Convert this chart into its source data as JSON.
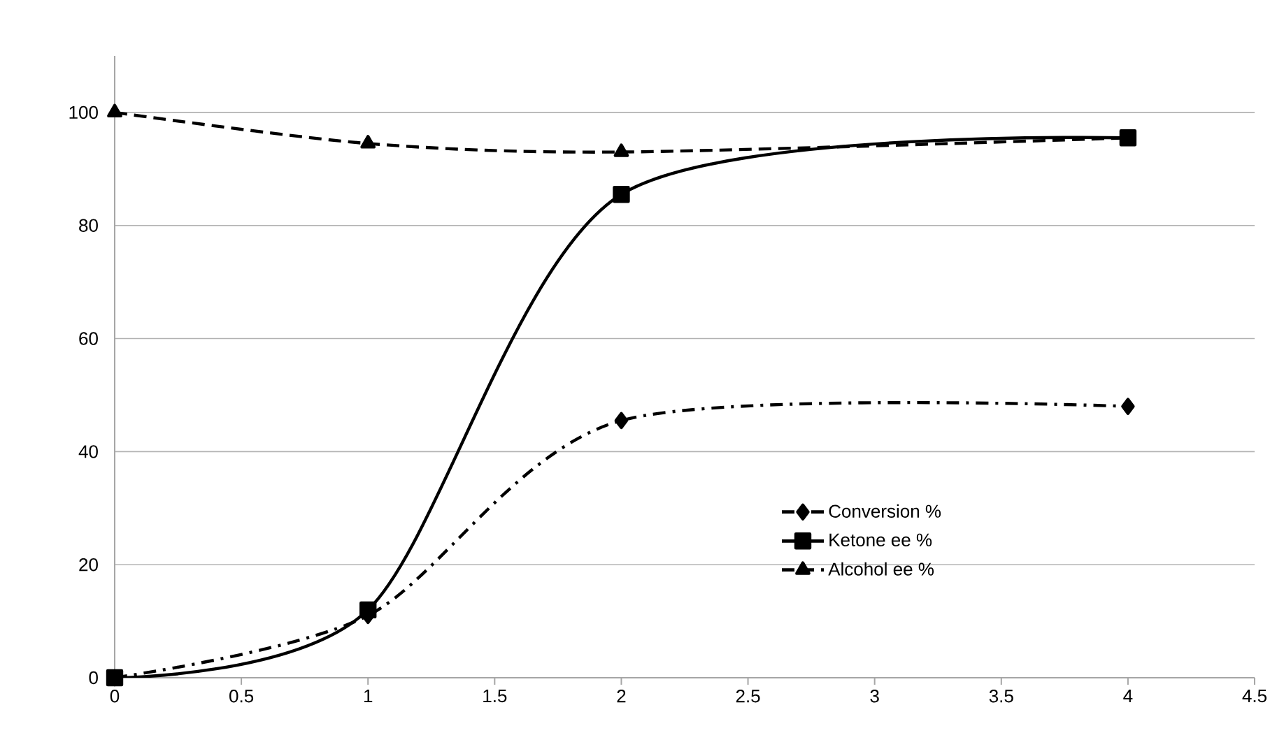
{
  "chart_data": {
    "type": "line",
    "x": [
      0,
      1,
      2,
      4
    ],
    "series": [
      {
        "name": "Conversion %",
        "color": "#000000",
        "values": [
          0,
          11,
          45.5,
          48
        ],
        "marker": "diamond",
        "line_style": "dashdot"
      },
      {
        "name": "Ketone ee %",
        "color": "#000000",
        "values": [
          0,
          12,
          85.5,
          95.5
        ],
        "marker": "square",
        "line_style": "solid"
      },
      {
        "name": "Alcohol ee %",
        "color": "#000000",
        "values": [
          100,
          94.5,
          93,
          95.5
        ],
        "marker": "triangle",
        "line_style": "dashed"
      }
    ],
    "xlim": [
      0,
      4.5
    ],
    "xticks": [
      0,
      0.5,
      1,
      1.5,
      2,
      2.5,
      3,
      3.5,
      4,
      4.5
    ],
    "ylim": [
      0,
      110
    ],
    "yticks": [
      0,
      20,
      40,
      60,
      80,
      100
    ],
    "grid": "y",
    "legend": "right"
  }
}
